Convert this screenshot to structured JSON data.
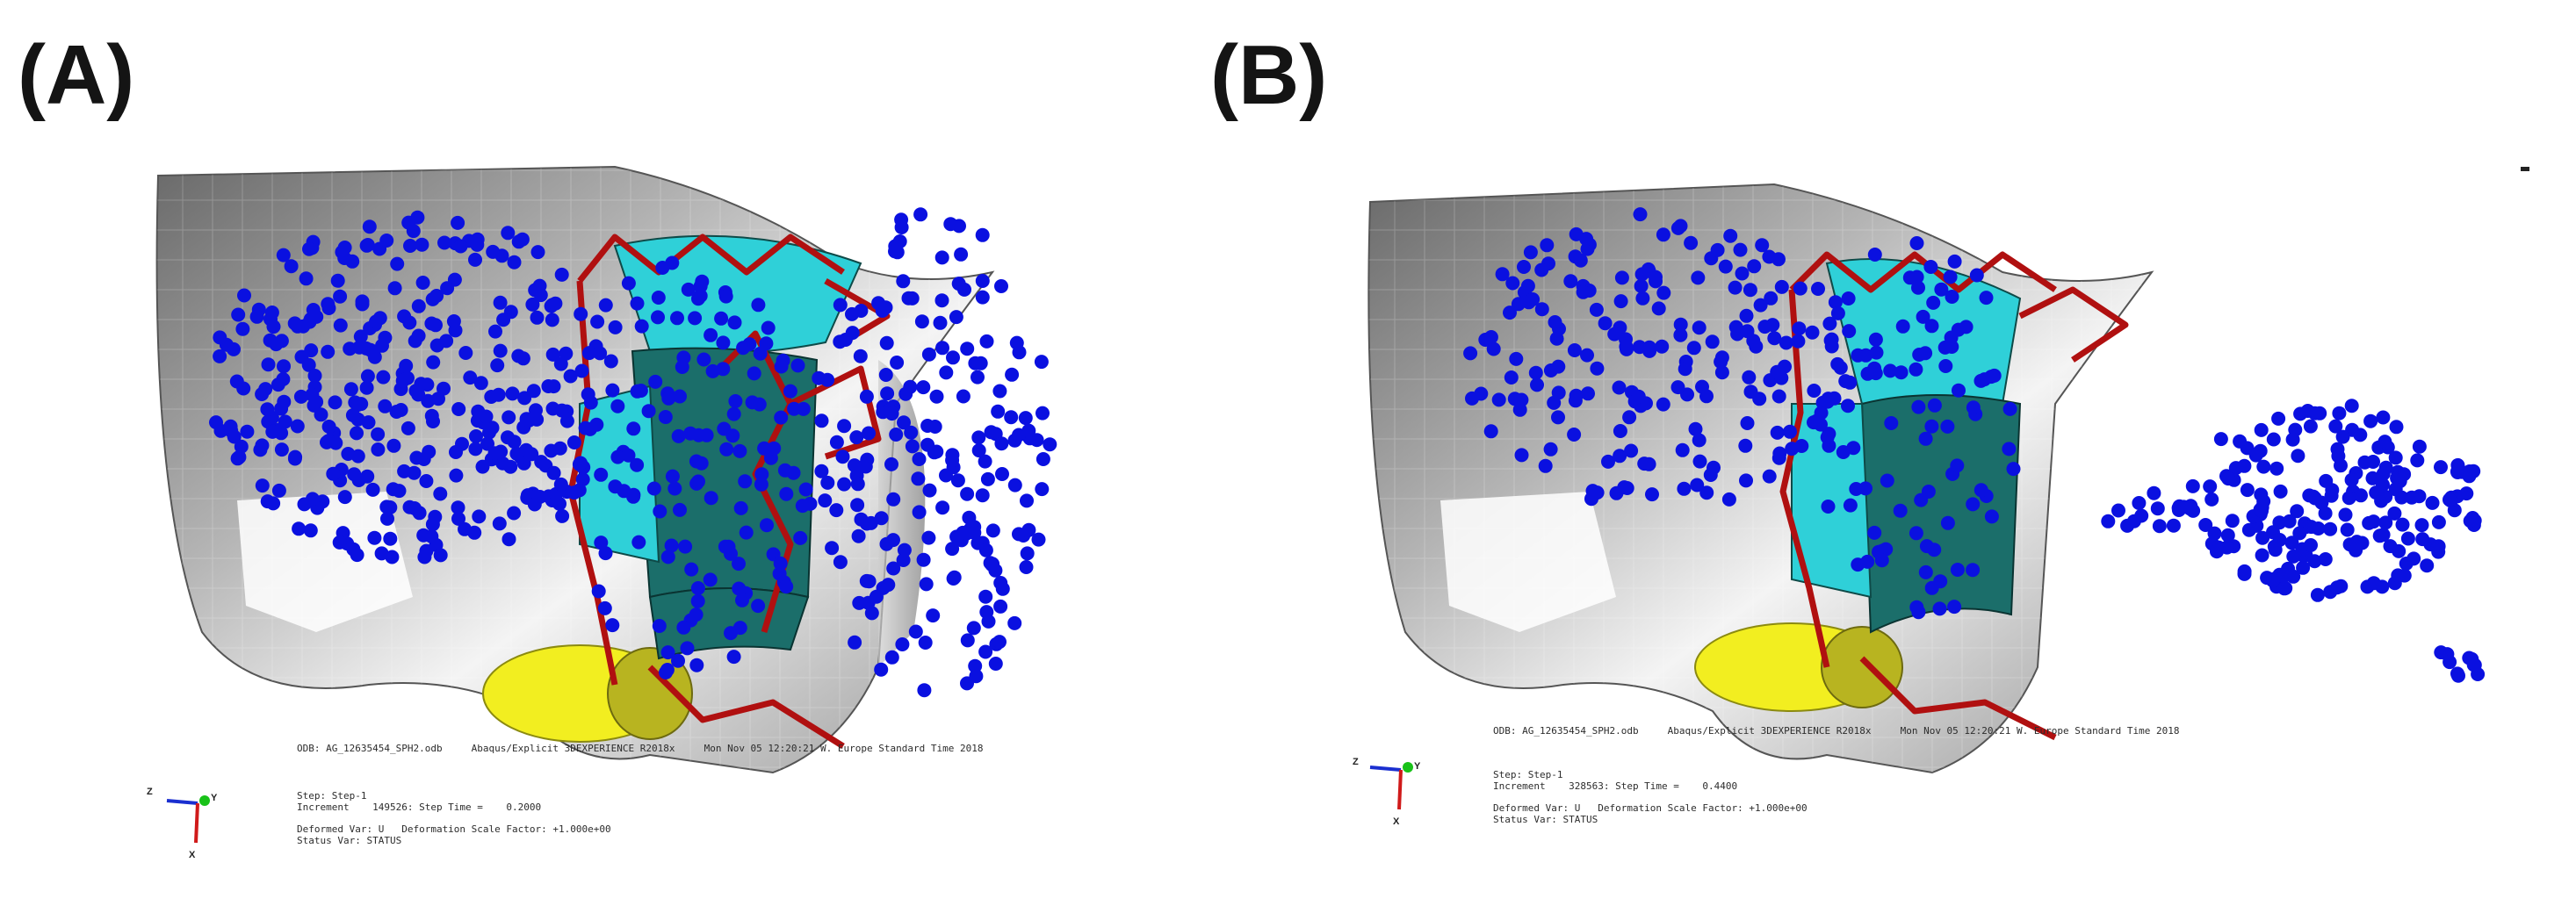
{
  "panels": [
    {
      "label": "(A)",
      "odb_line": "ODB: AG_12635454_SPH2.odb     Abaqus/Explicit 3DEXPERIENCE R2018x     Mon Nov 05 12:20:21 W. Europe Standard Time 2018",
      "step_line": "Step: Step-1",
      "increment_line": "Increment    149526: Step Time =    0.2000",
      "deformed_line": "Deformed Var: U   Deformation Scale Factor: +1.000e+00",
      "status_line": "Status Var: STATUS",
      "triad": {
        "z": "Z",
        "y": "Y",
        "x": "X"
      }
    },
    {
      "label": "(B)",
      "odb_line": "ODB: AG_12635454_SPH2.odb     Abaqus/Explicit 3DEXPERIENCE R2018x     Mon Nov 05 12:20:21 W. Europe Standard Time 2018",
      "step_line": "Step: Step-1",
      "increment_line": "Increment    328563: Step Time =    0.4400",
      "deformed_line": "Deformed Var: U   Deformation Scale Factor: +1.000e+00",
      "status_line": "Status Var: STATUS",
      "triad": {
        "z": "Z",
        "y": "Y",
        "x": "X"
      }
    }
  ],
  "colors": {
    "particles": "#0a10e0",
    "stent_frame": "#b01010",
    "leaflet_teal": "#1b6e6a",
    "leaflet_cyan": "#2fd0d8",
    "calcification": "#f2ee20",
    "tissue_light": "#e8e8e8",
    "tissue_dark": "#8c8c8c"
  }
}
